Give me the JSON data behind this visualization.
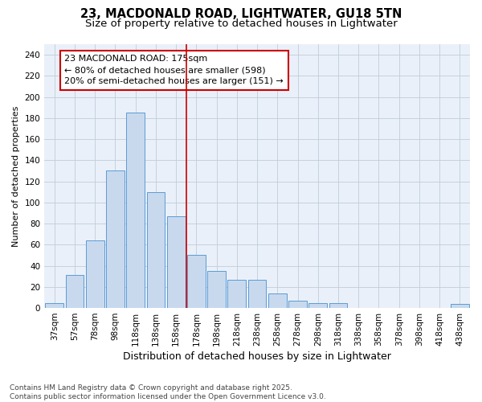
{
  "title": "23, MACDONALD ROAD, LIGHTWATER, GU18 5TN",
  "subtitle": "Size of property relative to detached houses in Lightwater",
  "xlabel": "Distribution of detached houses by size in Lightwater",
  "ylabel": "Number of detached properties",
  "bar_labels": [
    "37sqm",
    "57sqm",
    "78sqm",
    "98sqm",
    "118sqm",
    "138sqm",
    "158sqm",
    "178sqm",
    "198sqm",
    "218sqm",
    "238sqm",
    "258sqm",
    "278sqm",
    "298sqm",
    "318sqm",
    "338sqm",
    "358sqm",
    "378sqm",
    "398sqm",
    "418sqm",
    "438sqm"
  ],
  "bar_values": [
    5,
    31,
    64,
    130,
    185,
    110,
    87,
    50,
    35,
    27,
    27,
    14,
    7,
    5,
    5,
    0,
    0,
    0,
    0,
    0,
    4
  ],
  "bar_color": "#c8d9ee",
  "bar_edgecolor": "#5b9bd5",
  "vline_x_index": 7,
  "vline_color": "#cc0000",
  "annotation_text": "23 MACDONALD ROAD: 175sqm\n← 80% of detached houses are smaller (598)\n20% of semi-detached houses are larger (151) →",
  "annotation_box_color": "#ffffff",
  "annotation_box_edgecolor": "#cc0000",
  "ylim": [
    0,
    250
  ],
  "yticks": [
    0,
    20,
    40,
    60,
    80,
    100,
    120,
    140,
    160,
    180,
    200,
    220,
    240
  ],
  "bg_color": "#eaf0f9",
  "fig_bg_color": "#ffffff",
  "footnote": "Contains HM Land Registry data © Crown copyright and database right 2025.\nContains public sector information licensed under the Open Government Licence v3.0.",
  "title_fontsize": 10.5,
  "subtitle_fontsize": 9.5,
  "annotation_fontsize": 8,
  "footnote_fontsize": 6.5,
  "tick_fontsize": 7.5,
  "ylabel_fontsize": 8,
  "xlabel_fontsize": 9
}
